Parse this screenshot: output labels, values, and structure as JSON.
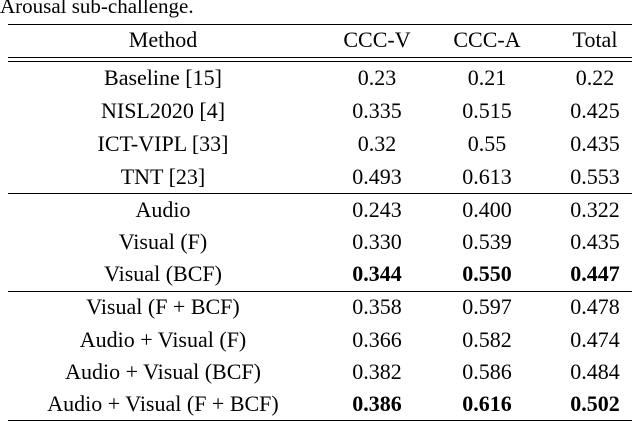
{
  "caption": "Arousal sub-challenge.",
  "table": {
    "header": [
      "Method",
      "CCC-V",
      "CCC-A",
      "Total"
    ],
    "rows": [
      [
        "Baseline [15]",
        "0.23",
        "0.21",
        "0.22"
      ],
      [
        "NISL2020 [4]",
        "0.335",
        "0.515",
        "0.425"
      ],
      [
        "ICT-VIPL [33]",
        "0.32",
        "0.55",
        "0.435"
      ],
      [
        "TNT [23]",
        "0.493",
        "0.613",
        "0.553"
      ],
      [
        "Audio",
        "0.243",
        "0.400",
        "0.322"
      ],
      [
        "Visual (F)",
        "0.330",
        "0.539",
        "0.435"
      ],
      [
        "Visual (BCF)",
        "0.344",
        "0.550",
        "0.447"
      ],
      [
        "Visual (F + BCF)",
        "0.358",
        "0.597",
        "0.478"
      ],
      [
        "Audio + Visual (F)",
        "0.366",
        "0.582",
        "0.474"
      ],
      [
        "Audio + Visual (BCF)",
        "0.382",
        "0.586",
        "0.484"
      ],
      [
        "Audio + Visual (F + BCF)",
        "0.386",
        "0.616",
        "0.502"
      ]
    ]
  }
}
